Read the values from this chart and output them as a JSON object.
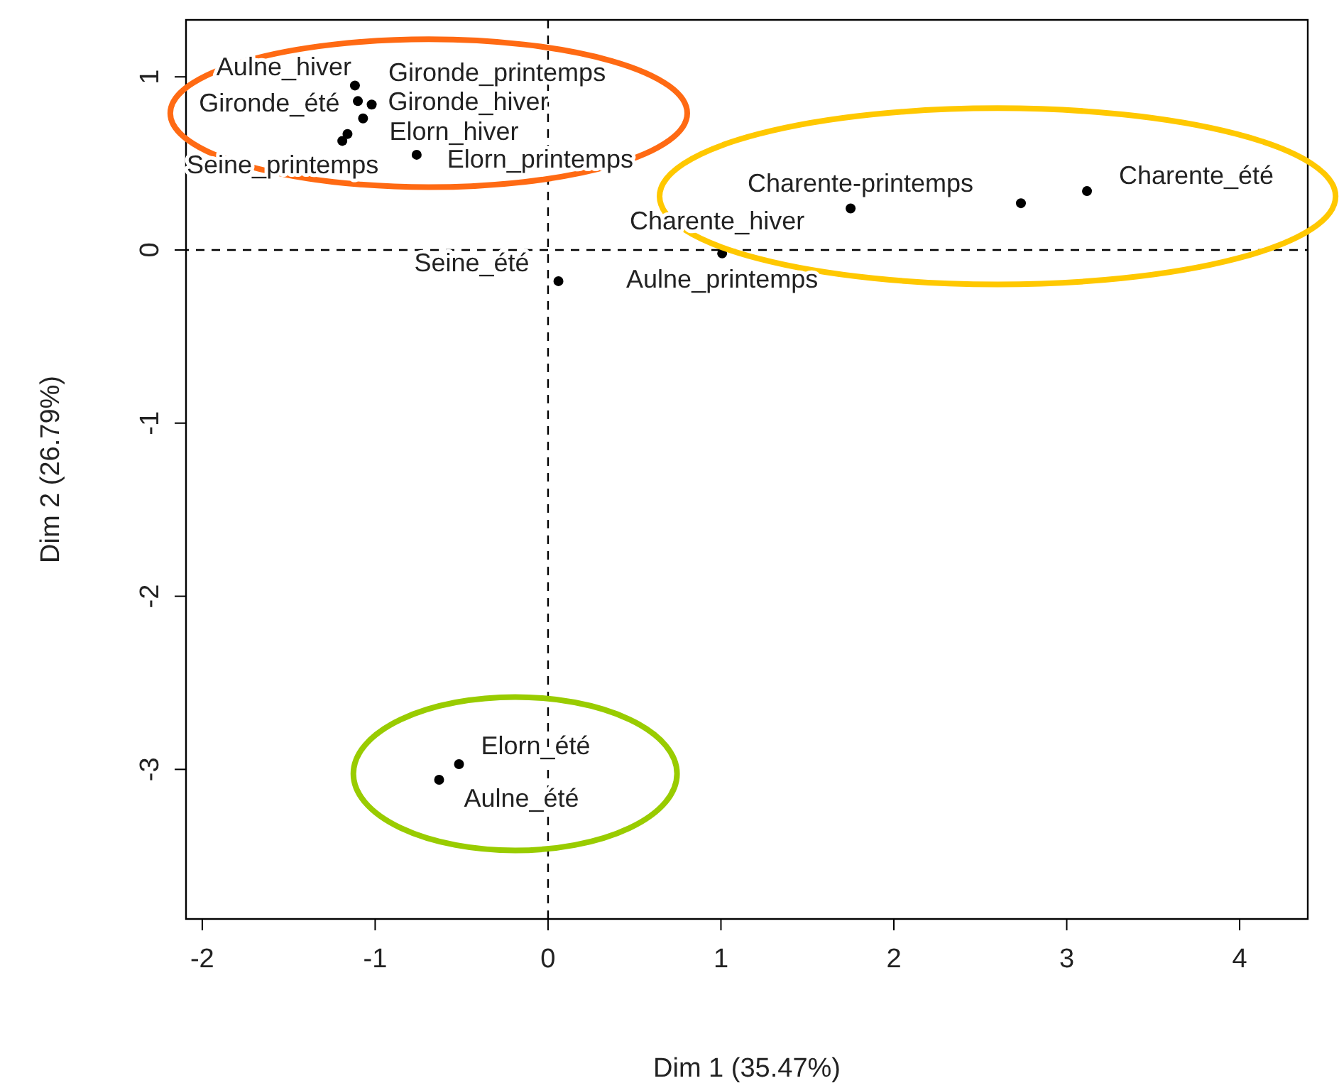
{
  "chart_data": {
    "type": "scatter",
    "xlabel": "Dim 1 (35.47%)",
    "ylabel": "Dim 2 (26.79%)",
    "x": [
      -1.117,
      -1.1,
      -1.02,
      -1.07,
      -1.16,
      -1.19,
      -0.76,
      0.06,
      1.007,
      1.75,
      2.735,
      3.117,
      -0.515,
      -0.63
    ],
    "series": [
      {
        "color": "#000000",
        "values": [
          0.95,
          0.86,
          0.84,
          0.76,
          0.67,
          0.63,
          0.55,
          -0.18,
          -0.02,
          0.24,
          0.27,
          0.34,
          -2.97,
          -3.06
        ]
      }
    ],
    "marker": "circle",
    "xlim": [
      -2.094,
      4.394
    ],
    "ylim": [
      -3.864,
      1.329
    ],
    "xticks": [
      -2,
      -1,
      0,
      1,
      2,
      3,
      4
    ],
    "yticks": [
      -3,
      -2,
      -1,
      0,
      1
    ],
    "ref_lines": [
      {
        "axis": "x",
        "value": 0,
        "line_style": "dashed",
        "color": "#000000"
      },
      {
        "axis": "y",
        "value": 0,
        "line_style": "dashed",
        "color": "#000000"
      }
    ],
    "annotations": [
      {
        "text": "Aulne_hiver",
        "x": -1.117,
        "y": 0.95
      },
      {
        "text": "Gironde_printemps",
        "x": -1.1,
        "y": 0.86
      },
      {
        "text": "Gironde_hiver",
        "x": -1.02,
        "y": 0.84
      },
      {
        "text": "Gironde_été",
        "x": -1.07,
        "y": 0.76
      },
      {
        "text": "Elorn_hiver",
        "x": -1.16,
        "y": 0.67
      },
      {
        "text": "Seine_printemps",
        "x": -1.19,
        "y": 0.63
      },
      {
        "text": "Elorn_printemps",
        "x": -0.76,
        "y": 0.55
      },
      {
        "text": "Seine_été",
        "x": 0.06,
        "y": -0.18
      },
      {
        "text": "Aulne_printemps",
        "x": 1.007,
        "y": -0.02
      },
      {
        "text": "Charente_hiver",
        "x": 1.75,
        "y": 0.24
      },
      {
        "text": "Charente-printemps",
        "x": 2.735,
        "y": 0.27
      },
      {
        "text": "Charente_été",
        "x": 3.117,
        "y": 0.34
      },
      {
        "text": "Elorn_été",
        "x": -0.515,
        "y": -2.97
      },
      {
        "text": "Aulne_été",
        "x": -0.63,
        "y": -3.06
      }
    ]
  }
}
